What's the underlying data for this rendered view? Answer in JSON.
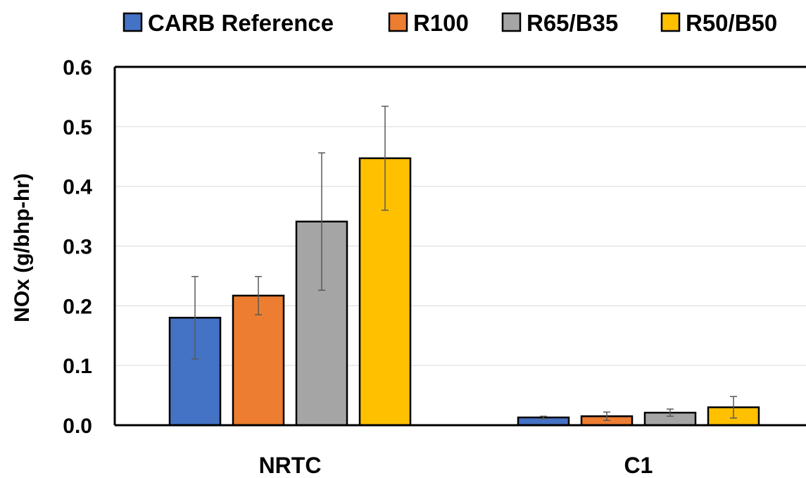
{
  "chart_data": {
    "type": "bar",
    "categories": [
      "NRTC",
      "C1"
    ],
    "ylabel": "NOx (g/bhp-hr)",
    "xlabel": "",
    "ylim": [
      0,
      0.6
    ],
    "yticks": [
      "0.0",
      "0.1",
      "0.2",
      "0.3",
      "0.4",
      "0.5",
      "0.6"
    ],
    "grid": true,
    "legend_position": "top",
    "series": [
      {
        "name": "CARB Reference",
        "color": "#4472C4",
        "values": [
          0.18,
          0.013
        ],
        "errors": [
          0.069,
          0.002
        ]
      },
      {
        "name": "R100",
        "color": "#ED7D31",
        "values": [
          0.217,
          0.015
        ],
        "errors": [
          0.032,
          0.007
        ]
      },
      {
        "name": "R65/B35",
        "color": "#A5A5A5",
        "values": [
          0.341,
          0.021
        ],
        "errors": [
          0.115,
          0.006
        ]
      },
      {
        "name": "R50/B50",
        "color": "#FFC000",
        "values": [
          0.447,
          0.03
        ],
        "errors": [
          0.087,
          0.018
        ]
      }
    ]
  }
}
